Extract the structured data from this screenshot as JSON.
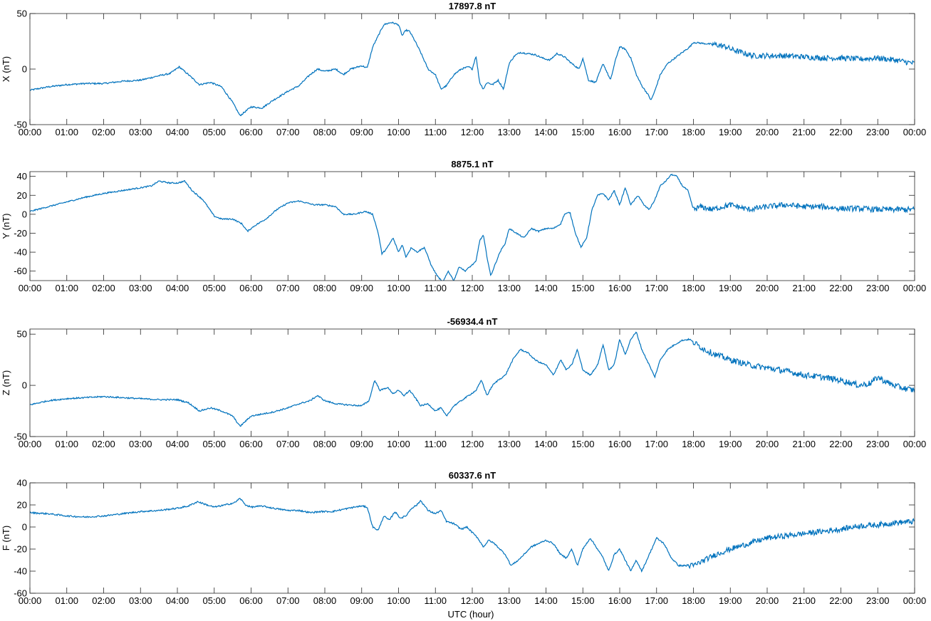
{
  "figure": {
    "xlabel": "UTC (hour)",
    "line_color": "#0072bd"
  },
  "chart_data": [
    {
      "type": "line",
      "title": "17897.8 nT",
      "ylabel": "X (nT)",
      "xlabel": "",
      "xlim": [
        0,
        24
      ],
      "ylim": [
        -50,
        50
      ],
      "yticks": [
        -50,
        0,
        50
      ],
      "xtick_labels": [
        "00:00",
        "01:00",
        "02:00",
        "03:00",
        "04:00",
        "05:00",
        "06:00",
        "07:00",
        "08:00",
        "09:00",
        "10:00",
        "11:00",
        "12:00",
        "13:00",
        "14:00",
        "15:00",
        "16:00",
        "17:00",
        "18:00",
        "19:00",
        "20:00",
        "21:00",
        "22:00",
        "23:00",
        "00:00"
      ],
      "grid": false,
      "noise_after_hour": 18.5,
      "noise_amp": 2.5,
      "series": [
        {
          "x": [
            0,
            0.5,
            1,
            1.5,
            2,
            2.5,
            3,
            3.5,
            3.8,
            4.05,
            4.3,
            4.6,
            4.9,
            5.2,
            5.5,
            5.7,
            5.85,
            6,
            6.3,
            6.6,
            7,
            7.3,
            7.6,
            7.8,
            8.0,
            8.3,
            8.5,
            8.7,
            9.0,
            9.15,
            9.3,
            9.45,
            9.6,
            9.8,
            10.0,
            10.1,
            10.2,
            10.3,
            10.45,
            10.6,
            10.8,
            11.0,
            11.15,
            11.3,
            11.5,
            11.7,
            11.9,
            12.0,
            12.1,
            12.2,
            12.3,
            12.4,
            12.55,
            12.7,
            12.85,
            13.0,
            13.15,
            13.3,
            13.5,
            13.7,
            13.9,
            14.1,
            14.3,
            14.5,
            14.7,
            14.9,
            15.0,
            15.15,
            15.35,
            15.55,
            15.75,
            15.9,
            16.0,
            16.15,
            16.3,
            16.45,
            16.6,
            16.75,
            16.85,
            16.95,
            17.1,
            17.3,
            17.5,
            17.7,
            17.9,
            18.0,
            18.3,
            18.6,
            18.9,
            19.0,
            19.3,
            19.6,
            20,
            20.5,
            21,
            21.5,
            22,
            22.5,
            23,
            23.5,
            24
          ],
          "y": [
            -19,
            -16,
            -14,
            -13,
            -13,
            -11,
            -10,
            -6,
            -4,
            2,
            -5,
            -14,
            -12,
            -16,
            -30,
            -42,
            -38,
            -34,
            -35,
            -28,
            -20,
            -15,
            -5,
            0,
            -2,
            0,
            -5,
            0,
            3,
            1,
            20,
            30,
            40,
            42,
            40,
            30,
            35,
            34,
            25,
            15,
            0,
            -5,
            -18,
            -15,
            -5,
            0,
            2,
            0,
            12,
            -12,
            -18,
            -12,
            -14,
            -10,
            -18,
            5,
            12,
            15,
            14,
            13,
            10,
            8,
            14,
            11,
            5,
            0,
            10,
            -10,
            -12,
            5,
            -10,
            10,
            20,
            18,
            10,
            -5,
            -15,
            -22,
            -28,
            -20,
            -5,
            5,
            10,
            15,
            20,
            24,
            23,
            22,
            20,
            18,
            15,
            12,
            12,
            12,
            11,
            10,
            10,
            9,
            10,
            8,
            5
          ]
        }
      ]
    },
    {
      "type": "line",
      "title": "8875.1 nT",
      "ylabel": "Y (nT)",
      "xlabel": "",
      "xlim": [
        0,
        24
      ],
      "ylim": [
        -70,
        45
      ],
      "yticks": [
        -60,
        -40,
        -20,
        0,
        20,
        40
      ],
      "xtick_labels": [
        "00:00",
        "01:00",
        "02:00",
        "03:00",
        "04:00",
        "05:00",
        "06:00",
        "07:00",
        "08:00",
        "09:00",
        "10:00",
        "11:00",
        "12:00",
        "13:00",
        "14:00",
        "15:00",
        "16:00",
        "17:00",
        "18:00",
        "19:00",
        "20:00",
        "21:00",
        "22:00",
        "23:00",
        "00:00"
      ],
      "grid": false,
      "noise_after_hour": 18,
      "noise_amp": 3,
      "series": [
        {
          "x": [
            0,
            0.5,
            1,
            1.5,
            2,
            2.5,
            3,
            3.3,
            3.5,
            3.8,
            4.0,
            4.2,
            4.4,
            4.7,
            5.0,
            5.2,
            5.5,
            5.75,
            5.9,
            6.1,
            6.4,
            6.7,
            7.0,
            7.3,
            7.7,
            8.0,
            8.3,
            8.5,
            8.8,
            9.1,
            9.3,
            9.45,
            9.55,
            9.7,
            9.85,
            10.0,
            10.1,
            10.2,
            10.35,
            10.5,
            10.7,
            10.9,
            11.05,
            11.2,
            11.35,
            11.5,
            11.65,
            11.8,
            11.95,
            12.1,
            12.2,
            12.3,
            12.4,
            12.5,
            12.6,
            12.75,
            12.9,
            13.0,
            13.2,
            13.4,
            13.6,
            13.8,
            14.0,
            14.2,
            14.4,
            14.5,
            14.65,
            14.8,
            14.95,
            15.1,
            15.25,
            15.4,
            15.55,
            15.7,
            15.85,
            16.0,
            16.15,
            16.3,
            16.5,
            16.65,
            16.8,
            16.95,
            17.1,
            17.25,
            17.4,
            17.55,
            17.7,
            17.85,
            18.0,
            18.2,
            18.5,
            19,
            19.5,
            20,
            20.5,
            21,
            21.5,
            22,
            22.5,
            23,
            23.5,
            24
          ],
          "y": [
            3,
            8,
            13,
            18,
            22,
            25,
            28,
            30,
            35,
            33,
            33,
            35,
            25,
            15,
            -2,
            -5,
            -5,
            -10,
            -18,
            -12,
            -5,
            5,
            12,
            14,
            10,
            10,
            8,
            0,
            0,
            3,
            0,
            -20,
            -42,
            -35,
            -25,
            -40,
            -32,
            -45,
            -35,
            -40,
            -35,
            -55,
            -65,
            -72,
            -60,
            -70,
            -55,
            -60,
            -55,
            -50,
            -28,
            -22,
            -45,
            -65,
            -55,
            -40,
            -30,
            -15,
            -20,
            -25,
            -15,
            -18,
            -15,
            -15,
            -10,
            0,
            2,
            -20,
            -35,
            -25,
            5,
            20,
            22,
            15,
            25,
            10,
            28,
            10,
            20,
            10,
            5,
            15,
            30,
            35,
            42,
            40,
            30,
            25,
            5,
            8,
            5,
            10,
            5,
            8,
            10,
            8,
            8,
            6,
            6,
            5,
            5,
            5
          ]
        }
      ]
    },
    {
      "type": "line",
      "title": "-56934.4 nT",
      "ylabel": "Z (nT)",
      "xlabel": "",
      "xlim": [
        0,
        24
      ],
      "ylim": [
        -50,
        55
      ],
      "yticks": [
        -50,
        0,
        50
      ],
      "xtick_labels": [
        "00:00",
        "01:00",
        "02:00",
        "03:00",
        "04:00",
        "05:00",
        "06:00",
        "07:00",
        "08:00",
        "09:00",
        "10:00",
        "11:00",
        "12:00",
        "13:00",
        "14:00",
        "15:00",
        "16:00",
        "17:00",
        "18:00",
        "19:00",
        "20:00",
        "21:00",
        "22:00",
        "23:00",
        "00:00"
      ],
      "grid": false,
      "noise_after_hour": 18,
      "noise_amp": 3,
      "series": [
        {
          "x": [
            0,
            0.5,
            1,
            1.5,
            2,
            2.5,
            3,
            3.5,
            4.0,
            4.3,
            4.6,
            4.9,
            5.2,
            5.5,
            5.7,
            5.85,
            6.0,
            6.3,
            6.6,
            7.0,
            7.3,
            7.6,
            7.8,
            8.0,
            8.3,
            8.6,
            9.0,
            9.2,
            9.35,
            9.5,
            9.7,
            9.85,
            10.0,
            10.15,
            10.3,
            10.45,
            10.6,
            10.8,
            11.0,
            11.15,
            11.3,
            11.5,
            11.7,
            11.9,
            12.1,
            12.25,
            12.4,
            12.55,
            12.7,
            12.9,
            13.1,
            13.3,
            13.5,
            13.7,
            13.85,
            14.0,
            14.2,
            14.4,
            14.55,
            14.7,
            14.85,
            15.0,
            15.2,
            15.4,
            15.55,
            15.7,
            15.85,
            16.0,
            16.15,
            16.3,
            16.45,
            16.6,
            16.8,
            16.95,
            17.1,
            17.3,
            17.5,
            17.7,
            17.9,
            18.0,
            18.3,
            18.6,
            19,
            19.5,
            20,
            20.5,
            21,
            21.5,
            22,
            22.5,
            22.8,
            23,
            23.3,
            23.6,
            24
          ],
          "y": [
            -19,
            -15,
            -13,
            -12,
            -11,
            -12,
            -13,
            -14,
            -14,
            -17,
            -25,
            -22,
            -25,
            -30,
            -40,
            -35,
            -30,
            -28,
            -26,
            -22,
            -18,
            -15,
            -10,
            -15,
            -18,
            -19,
            -20,
            -15,
            5,
            -5,
            -2,
            -8,
            -5,
            -10,
            -5,
            -12,
            -20,
            -18,
            -25,
            -22,
            -30,
            -20,
            -15,
            -10,
            -5,
            5,
            -10,
            0,
            5,
            10,
            25,
            35,
            32,
            25,
            22,
            20,
            10,
            25,
            15,
            20,
            35,
            15,
            10,
            20,
            40,
            15,
            20,
            45,
            30,
            45,
            52,
            35,
            20,
            8,
            25,
            35,
            40,
            44,
            45,
            42,
            35,
            30,
            25,
            20,
            17,
            14,
            10,
            8,
            5,
            0,
            2,
            8,
            2,
            -2,
            -5
          ]
        }
      ]
    },
    {
      "type": "line",
      "title": "60337.6 nT",
      "ylabel": "F (nT)",
      "xlabel": "UTC (hour)",
      "xlim": [
        0,
        24
      ],
      "ylim": [
        -60,
        40
      ],
      "yticks": [
        -60,
        -40,
        -20,
        0,
        20,
        40
      ],
      "xtick_labels": [
        "00:00",
        "01:00",
        "02:00",
        "03:00",
        "04:00",
        "05:00",
        "06:00",
        "07:00",
        "08:00",
        "09:00",
        "10:00",
        "11:00",
        "12:00",
        "13:00",
        "14:00",
        "15:00",
        "16:00",
        "17:00",
        "18:00",
        "19:00",
        "20:00",
        "21:00",
        "22:00",
        "23:00",
        "00:00"
      ],
      "grid": false,
      "noise_after_hour": 17.8,
      "noise_amp": 2.5,
      "series": [
        {
          "x": [
            0,
            0.5,
            1,
            1.5,
            2,
            2.5,
            3,
            3.5,
            4.0,
            4.3,
            4.55,
            4.8,
            5.0,
            5.3,
            5.55,
            5.7,
            5.85,
            6.0,
            6.3,
            6.6,
            7.0,
            7.3,
            7.6,
            7.9,
            8.2,
            8.5,
            8.8,
            9.0,
            9.15,
            9.3,
            9.45,
            9.6,
            9.75,
            9.9,
            10.05,
            10.2,
            10.35,
            10.5,
            10.6,
            10.8,
            11.0,
            11.15,
            11.3,
            11.5,
            11.7,
            11.85,
            12.0,
            12.15,
            12.3,
            12.45,
            12.6,
            12.75,
            12.9,
            13.05,
            13.25,
            13.4,
            13.6,
            13.8,
            14.0,
            14.2,
            14.4,
            14.55,
            14.7,
            14.85,
            15.0,
            15.2,
            15.4,
            15.55,
            15.7,
            15.85,
            16.0,
            16.15,
            16.3,
            16.45,
            16.6,
            16.8,
            17.0,
            17.2,
            17.4,
            17.6,
            17.8,
            18.0,
            18.3,
            18.6,
            19,
            19.5,
            20,
            20.5,
            21,
            21.5,
            22,
            22.5,
            23,
            23.5,
            24
          ],
          "y": [
            13,
            12,
            10,
            9,
            10,
            12,
            14,
            15,
            17,
            19,
            23,
            20,
            18,
            20,
            22,
            26,
            20,
            18,
            19,
            17,
            15,
            15,
            13,
            14,
            14,
            16,
            18,
            19,
            18,
            0,
            -3,
            10,
            6,
            14,
            8,
            10,
            17,
            20,
            24,
            15,
            12,
            15,
            5,
            3,
            -2,
            0,
            -5,
            -10,
            -18,
            -12,
            -15,
            -20,
            -25,
            -35,
            -30,
            -25,
            -18,
            -15,
            -12,
            -15,
            -25,
            -28,
            -20,
            -35,
            -20,
            -10,
            -20,
            -28,
            -40,
            -25,
            -20,
            -30,
            -40,
            -30,
            -40,
            -25,
            -10,
            -15,
            -28,
            -35,
            -35,
            -35,
            -30,
            -25,
            -20,
            -15,
            -10,
            -8,
            -6,
            -4,
            -2,
            1,
            2,
            4,
            5
          ]
        }
      ]
    }
  ]
}
